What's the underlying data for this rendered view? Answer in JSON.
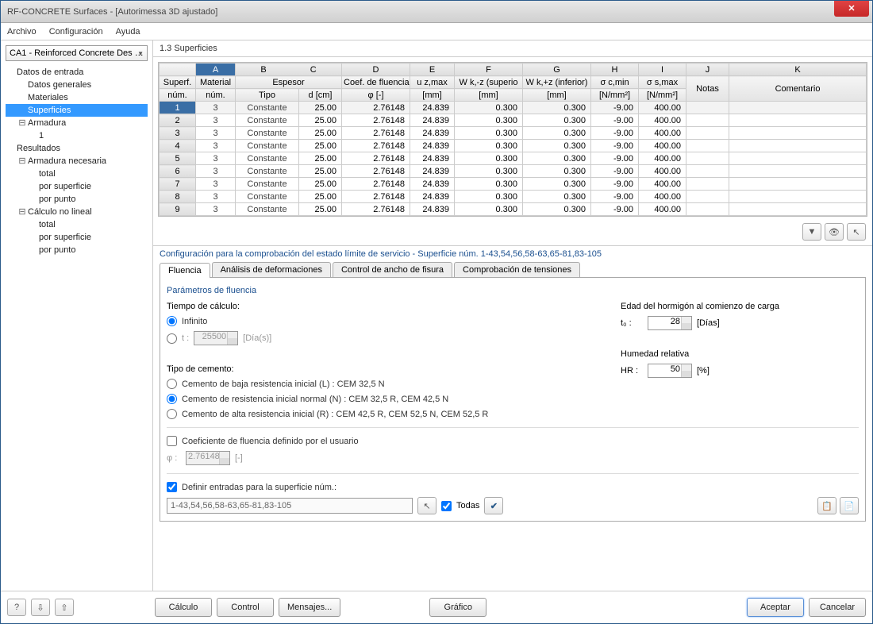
{
  "window": {
    "title": "RF-CONCRETE Surfaces - [Autorimessa 3D ajustado]"
  },
  "menu": {
    "archivo": "Archivo",
    "config": "Configuración",
    "ayuda": "Ayuda"
  },
  "combo": {
    "value": "CA1 - Reinforced Concrete Des …"
  },
  "tree": {
    "datos_entrada": "Datos de entrada",
    "datos_generales": "Datos generales",
    "materiales": "Materiales",
    "superficies": "Superficies",
    "armadura": "Armadura",
    "armadura_1": "1",
    "resultados": "Resultados",
    "armadura_nec": "Armadura necesaria",
    "total": "total",
    "por_superficie": "por superficie",
    "por_punto": "por punto",
    "calculo_nl": "Cálculo no lineal"
  },
  "content_title": "1.3 Superficies",
  "columns": {
    "letters": [
      "A",
      "B",
      "C",
      "D",
      "E",
      "F",
      "G",
      "H",
      "I",
      "J",
      "K"
    ],
    "h1": {
      "superf": "Superf.",
      "num": "núm.",
      "material": "Material",
      "material_num": "núm.",
      "espesor": "Espesor",
      "tipo": "Tipo",
      "d": "d [cm]",
      "coef": "Coef. de fluencia",
      "phi": "φ [-]",
      "uzmax": "u z,max",
      "mm": "[mm]",
      "wkz_sup": "W k,-z (superio",
      "wkz_inf": "W k,+z (inferior)",
      "sigc": "σ c,min",
      "nmm2": "[N/mm²]",
      "sigs": "σ s,max",
      "notas": "Notas",
      "coment": "Comentario"
    }
  },
  "rows": [
    {
      "n": "1",
      "mat": "3",
      "tipo": "Constante",
      "d": "25.00",
      "phi": "2.76148",
      "uz": "24.839",
      "wk1": "0.300",
      "wk2": "0.300",
      "sc": "-9.00",
      "ss": "400.00"
    },
    {
      "n": "2",
      "mat": "3",
      "tipo": "Constante",
      "d": "25.00",
      "phi": "2.76148",
      "uz": "24.839",
      "wk1": "0.300",
      "wk2": "0.300",
      "sc": "-9.00",
      "ss": "400.00"
    },
    {
      "n": "3",
      "mat": "3",
      "tipo": "Constante",
      "d": "25.00",
      "phi": "2.76148",
      "uz": "24.839",
      "wk1": "0.300",
      "wk2": "0.300",
      "sc": "-9.00",
      "ss": "400.00"
    },
    {
      "n": "4",
      "mat": "3",
      "tipo": "Constante",
      "d": "25.00",
      "phi": "2.76148",
      "uz": "24.839",
      "wk1": "0.300",
      "wk2": "0.300",
      "sc": "-9.00",
      "ss": "400.00"
    },
    {
      "n": "5",
      "mat": "3",
      "tipo": "Constante",
      "d": "25.00",
      "phi": "2.76148",
      "uz": "24.839",
      "wk1": "0.300",
      "wk2": "0.300",
      "sc": "-9.00",
      "ss": "400.00"
    },
    {
      "n": "6",
      "mat": "3",
      "tipo": "Constante",
      "d": "25.00",
      "phi": "2.76148",
      "uz": "24.839",
      "wk1": "0.300",
      "wk2": "0.300",
      "sc": "-9.00",
      "ss": "400.00"
    },
    {
      "n": "7",
      "mat": "3",
      "tipo": "Constante",
      "d": "25.00",
      "phi": "2.76148",
      "uz": "24.839",
      "wk1": "0.300",
      "wk2": "0.300",
      "sc": "-9.00",
      "ss": "400.00"
    },
    {
      "n": "8",
      "mat": "3",
      "tipo": "Constante",
      "d": "25.00",
      "phi": "2.76148",
      "uz": "24.839",
      "wk1": "0.300",
      "wk2": "0.300",
      "sc": "-9.00",
      "ss": "400.00"
    },
    {
      "n": "9",
      "mat": "3",
      "tipo": "Constante",
      "d": "25.00",
      "phi": "2.76148",
      "uz": "24.839",
      "wk1": "0.300",
      "wk2": "0.300",
      "sc": "-9.00",
      "ss": "400.00"
    }
  ],
  "config_title": "Configuración para la comprobación del estado límite de servicio - Superficie núm. 1-43,54,56,58-63,65-81,83-105",
  "tabs": {
    "fluencia": "Fluencia",
    "analisis": "Análisis de deformaciones",
    "control": "Control de ancho de fisura",
    "tensiones": "Comprobación de tensiones"
  },
  "form": {
    "params_title": "Parámetros de fluencia",
    "tiempo_label": "Tiempo de cálculo:",
    "infinito": "Infinito",
    "t_label": "t :",
    "t_value": "25500",
    "t_unit": "[Día(s)]",
    "cemento_label": "Tipo de cemento:",
    "cem_l": "Cemento de baja resistencia inicial (L) : CEM 32,5 N",
    "cem_n": "Cemento de resistencia inicial normal (N) : CEM 32,5 R, CEM 42,5 N",
    "cem_r": "Cemento de alta resistencia inicial (R) : CEM 42,5 R, CEM 52,5 N, CEM 52,5 R",
    "edad_label": "Edad del hormigón al comienzo de carga",
    "t0_label": "t₀ :",
    "t0_value": "28",
    "dias": "[Días]",
    "hr_title": "Humedad relativa",
    "hr_label": "HR :",
    "hr_value": "50",
    "pct": "[%]",
    "coef_user": "Coeficiente de fluencia definido por el usuario",
    "phi_label": "φ :",
    "phi_value": "2.76148",
    "phi_unit": "[-]",
    "define_check": "Definir entradas para la superficie núm.:",
    "define_value": "1-43,54,56,58-63,65-81,83-105",
    "todas": "Todas"
  },
  "footer": {
    "calculo": "Cálculo",
    "control": "Control",
    "mensajes": "Mensajes...",
    "grafico": "Gráfico",
    "aceptar": "Aceptar",
    "cancelar": "Cancelar"
  }
}
